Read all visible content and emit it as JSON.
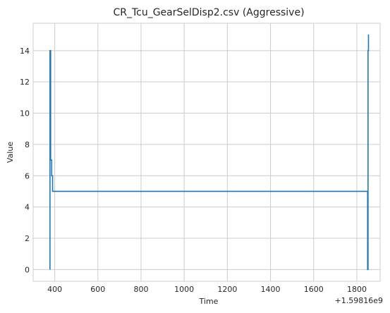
{
  "chart_data": {
    "type": "line",
    "title": "CR_Tcu_GearSelDisp2.csv (Aggressive)",
    "xlabel": "Time",
    "ylabel": "Value",
    "x_offset_label": "+1.59816e9",
    "xlim": [
      300,
      1908
    ],
    "ylim": [
      -0.75,
      15.75
    ],
    "xticks": [
      400,
      600,
      800,
      1000,
      1200,
      1400,
      1600,
      1800
    ],
    "yticks": [
      0,
      2,
      4,
      6,
      8,
      10,
      12,
      14
    ],
    "grid": true,
    "series": [
      {
        "color": "#1f77b4",
        "x": [
          378,
          378,
          381,
          381,
          386,
          386,
          390,
          390,
          1850,
          1850,
          1852,
          1852,
          1854,
          1854,
          1856
        ],
        "y": [
          0,
          14,
          14,
          7,
          7,
          6,
          6,
          5,
          5,
          0,
          0,
          14,
          14,
          15,
          15
        ]
      }
    ]
  }
}
